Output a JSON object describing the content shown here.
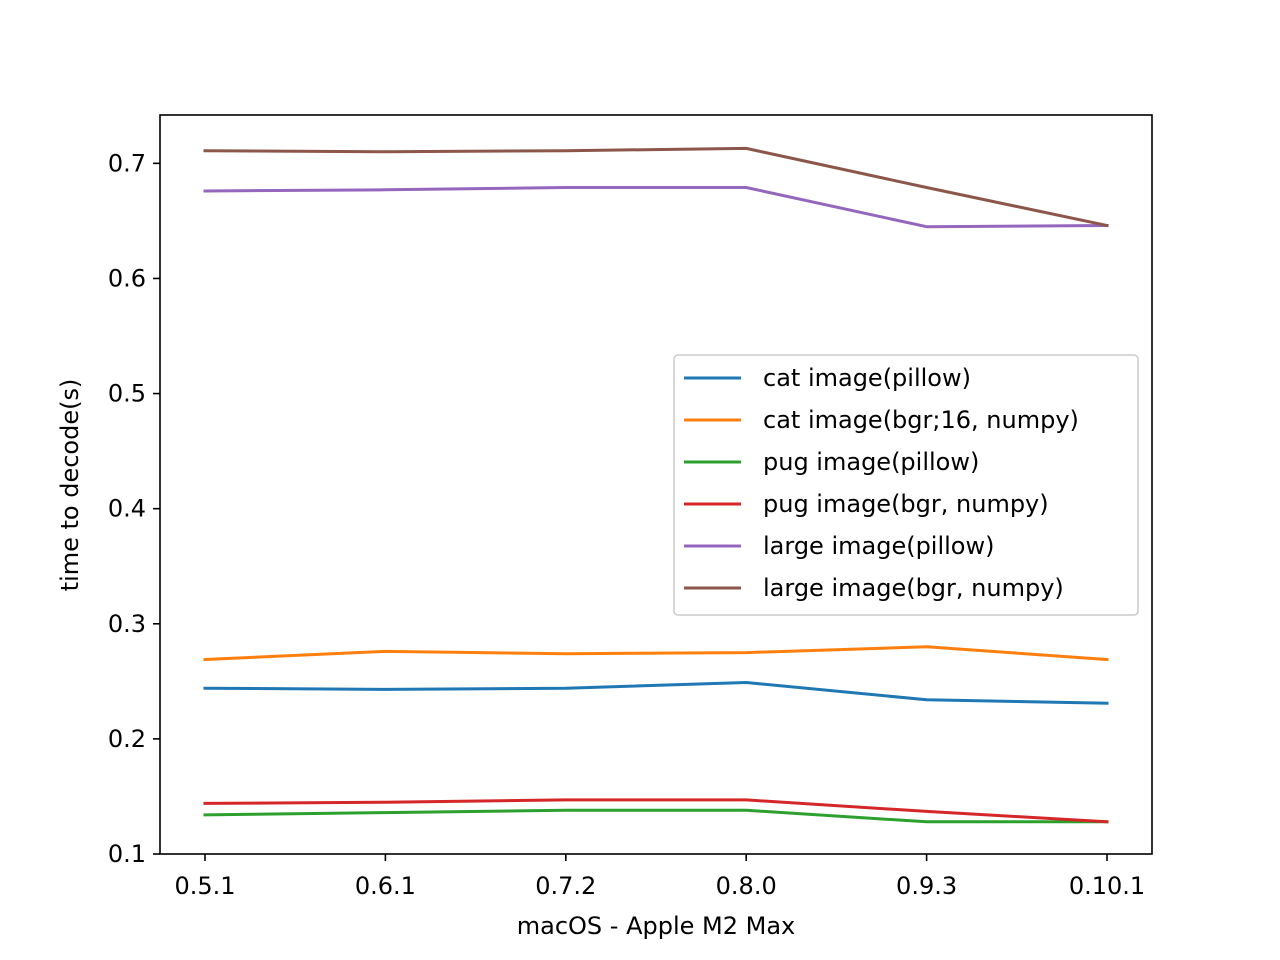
{
  "chart_data": {
    "type": "line",
    "title": "",
    "xlabel": "macOS - Apple M2 Max",
    "ylabel": "time to decode(s)",
    "categories": [
      "0.5.1",
      "0.6.1",
      "0.7.2",
      "0.8.0",
      "0.9.3",
      "0.10.1"
    ],
    "yticks": [
      "0.1",
      "0.2",
      "0.3",
      "0.4",
      "0.5",
      "0.6",
      "0.7"
    ],
    "ylim": [
      0.1,
      0.742
    ],
    "grid": false,
    "legend_position": "center-right",
    "series": [
      {
        "name": "cat image(pillow)",
        "color": "#1f77b4",
        "values": [
          0.244,
          0.243,
          0.244,
          0.249,
          0.234,
          0.231
        ]
      },
      {
        "name": "cat image(bgr;16, numpy)",
        "color": "#ff7f0e",
        "values": [
          0.269,
          0.276,
          0.274,
          0.275,
          0.28,
          0.269
        ]
      },
      {
        "name": "pug image(pillow)",
        "color": "#2ca02c",
        "values": [
          0.134,
          0.136,
          0.138,
          0.138,
          0.128,
          0.128
        ]
      },
      {
        "name": "pug image(bgr, numpy)",
        "color": "#d62728",
        "values": [
          0.144,
          0.145,
          0.147,
          0.147,
          0.137,
          0.128
        ]
      },
      {
        "name": "large image(pillow)",
        "color": "#9467bd",
        "values": [
          0.676,
          0.677,
          0.679,
          0.679,
          0.645,
          0.646
        ]
      },
      {
        "name": "large image(bgr, numpy)",
        "color": "#8c564b",
        "values": [
          0.711,
          0.71,
          0.711,
          0.713,
          0.679,
          0.646
        ]
      }
    ]
  }
}
